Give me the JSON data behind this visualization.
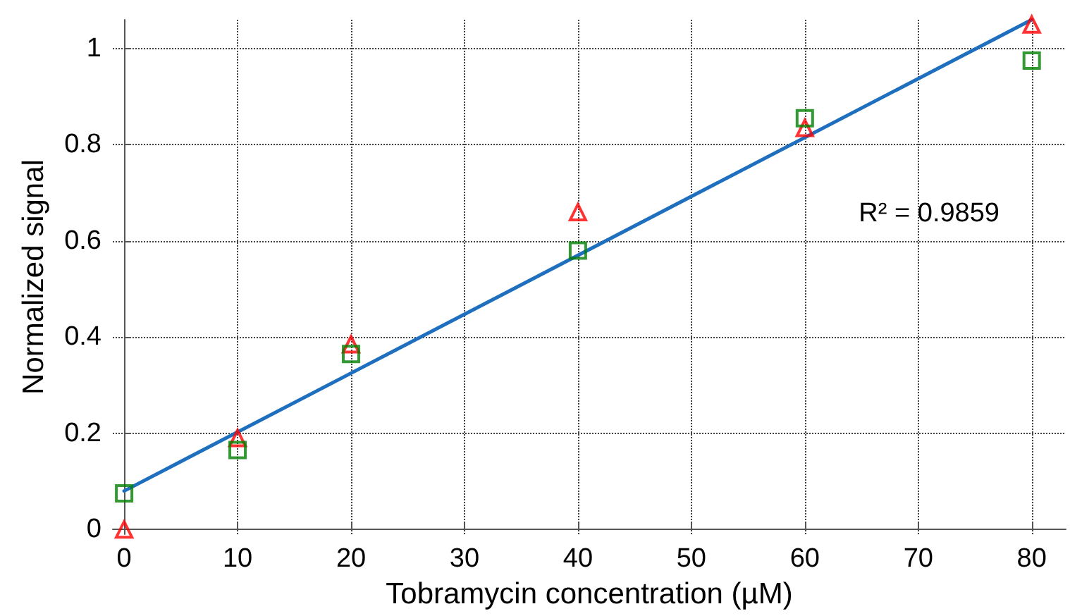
{
  "chart_data": {
    "type": "scatter",
    "xlabel": "Tobramycin concentration (µM)",
    "ylabel": "Normalized signal",
    "annotations": [
      "R² = 0.9859"
    ],
    "xlim": [
      -1,
      83
    ],
    "ylim": [
      -0.01,
      1.06
    ],
    "xticks": [
      0,
      10,
      20,
      30,
      40,
      50,
      60,
      70,
      80
    ],
    "yticks": [
      0,
      0.2,
      0.4,
      0.6,
      0.8,
      1
    ],
    "grid": true,
    "series": [
      {
        "type": "line",
        "x": [
          0,
          80
        ],
        "values": [
          0.08,
          1.06
        ],
        "color": "#1f6fbf",
        "marker": "none",
        "line_style": "solid"
      },
      {
        "x": [
          0,
          10,
          20,
          40,
          60,
          80
        ],
        "values": [
          0.0,
          0.19,
          0.385,
          0.66,
          0.835,
          1.05
        ],
        "color": "#ff0000",
        "marker": "triangle"
      },
      {
        "x": [
          0,
          10,
          20,
          40,
          60,
          80
        ],
        "values": [
          0.075,
          0.165,
          0.365,
          0.58,
          0.855,
          0.975
        ],
        "color": "#008000",
        "marker": "square"
      }
    ]
  }
}
